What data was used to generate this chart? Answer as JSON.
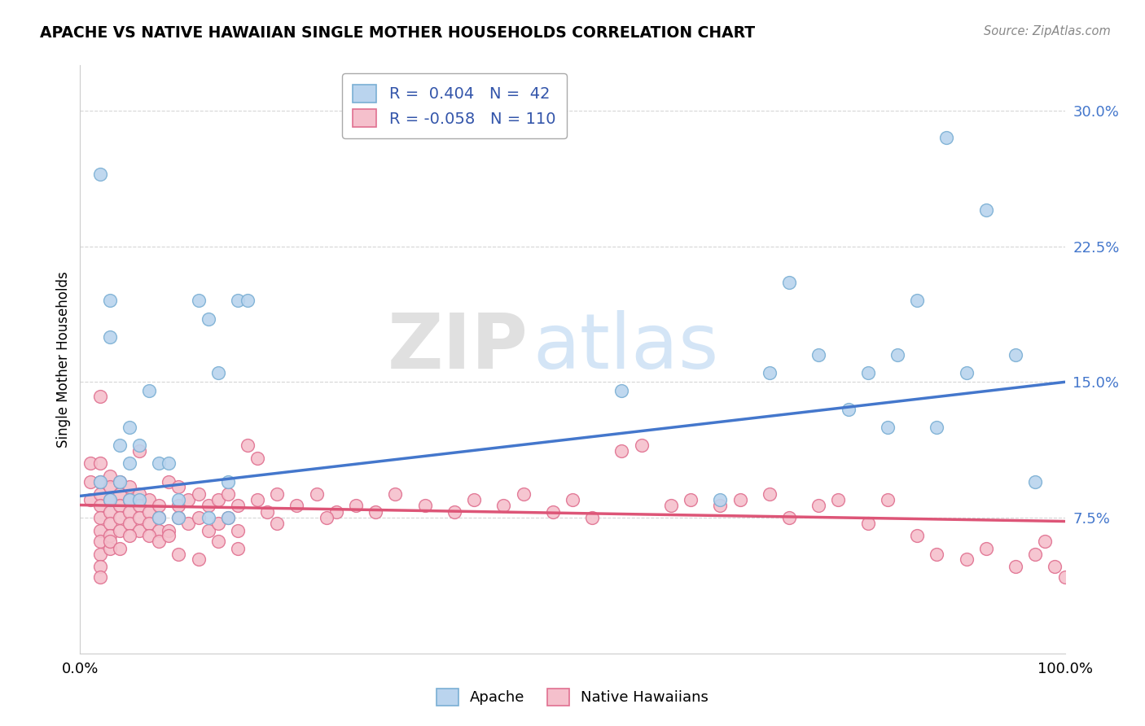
{
  "title": "APACHE VS NATIVE HAWAIIAN SINGLE MOTHER HOUSEHOLDS CORRELATION CHART",
  "source": "Source: ZipAtlas.com",
  "ylabel": "Single Mother Households",
  "xlim": [
    0,
    1.0
  ],
  "ylim": [
    0.0,
    0.325
  ],
  "yticks": [
    0.075,
    0.15,
    0.225,
    0.3
  ],
  "yticklabels": [
    "7.5%",
    "15.0%",
    "22.5%",
    "30.0%"
  ],
  "xtick_positions": [
    0.0,
    1.0
  ],
  "xticklabels": [
    "0.0%",
    "100.0%"
  ],
  "apache_R": 0.404,
  "apache_N": 42,
  "native_R": -0.058,
  "native_N": 110,
  "apache_face": "#bad4ee",
  "apache_edge": "#7aafd4",
  "native_face": "#f5c0cc",
  "native_edge": "#e07090",
  "line_apache": "#4477cc",
  "line_native": "#dd5577",
  "background": "#ffffff",
  "grid_color": "#cccccc",
  "apache_x": [
    0.02,
    0.03,
    0.03,
    0.04,
    0.05,
    0.05,
    0.06,
    0.07,
    0.08,
    0.09,
    0.1,
    0.12,
    0.13,
    0.14,
    0.15,
    0.16,
    0.17,
    0.55,
    0.65,
    0.7,
    0.72,
    0.75,
    0.78,
    0.8,
    0.83,
    0.85,
    0.88,
    0.9,
    0.92,
    0.95,
    0.97,
    0.02,
    0.03,
    0.04,
    0.05,
    0.06,
    0.08,
    0.1,
    0.13,
    0.15,
    0.87,
    0.82
  ],
  "apache_y": [
    0.265,
    0.195,
    0.175,
    0.115,
    0.125,
    0.105,
    0.115,
    0.145,
    0.105,
    0.105,
    0.085,
    0.195,
    0.185,
    0.155,
    0.095,
    0.195,
    0.195,
    0.145,
    0.085,
    0.155,
    0.205,
    0.165,
    0.135,
    0.155,
    0.165,
    0.195,
    0.285,
    0.155,
    0.245,
    0.165,
    0.095,
    0.095,
    0.085,
    0.095,
    0.085,
    0.085,
    0.075,
    0.075,
    0.075,
    0.075,
    0.125,
    0.125
  ],
  "native_x": [
    0.01,
    0.01,
    0.01,
    0.02,
    0.02,
    0.02,
    0.02,
    0.02,
    0.02,
    0.02,
    0.02,
    0.02,
    0.02,
    0.03,
    0.03,
    0.03,
    0.03,
    0.03,
    0.03,
    0.03,
    0.04,
    0.04,
    0.04,
    0.04,
    0.04,
    0.05,
    0.05,
    0.05,
    0.05,
    0.06,
    0.06,
    0.06,
    0.06,
    0.07,
    0.07,
    0.07,
    0.08,
    0.08,
    0.08,
    0.09,
    0.09,
    0.1,
    0.1,
    0.1,
    0.11,
    0.11,
    0.12,
    0.12,
    0.13,
    0.13,
    0.14,
    0.14,
    0.15,
    0.15,
    0.16,
    0.16,
    0.17,
    0.18,
    0.19,
    0.2,
    0.22,
    0.24,
    0.26,
    0.28,
    0.3,
    0.32,
    0.35,
    0.38,
    0.4,
    0.43,
    0.45,
    0.48,
    0.5,
    0.52,
    0.55,
    0.57,
    0.6,
    0.62,
    0.65,
    0.67,
    0.7,
    0.72,
    0.75,
    0.77,
    0.8,
    0.82,
    0.85,
    0.87,
    0.9,
    0.92,
    0.95,
    0.97,
    0.98,
    0.99,
    1.0,
    0.02,
    0.03,
    0.04,
    0.05,
    0.06,
    0.07,
    0.08,
    0.09,
    0.1,
    0.12,
    0.14,
    0.16,
    0.18,
    0.2,
    0.25
  ],
  "native_y": [
    0.105,
    0.095,
    0.085,
    0.105,
    0.095,
    0.088,
    0.082,
    0.075,
    0.068,
    0.062,
    0.055,
    0.048,
    0.042,
    0.098,
    0.092,
    0.085,
    0.078,
    0.072,
    0.065,
    0.058,
    0.095,
    0.088,
    0.082,
    0.075,
    0.068,
    0.092,
    0.085,
    0.078,
    0.072,
    0.088,
    0.082,
    0.075,
    0.068,
    0.085,
    0.078,
    0.072,
    0.082,
    0.075,
    0.068,
    0.095,
    0.068,
    0.092,
    0.082,
    0.075,
    0.085,
    0.072,
    0.088,
    0.075,
    0.082,
    0.068,
    0.085,
    0.072,
    0.088,
    0.075,
    0.082,
    0.068,
    0.115,
    0.085,
    0.078,
    0.088,
    0.082,
    0.088,
    0.078,
    0.082,
    0.078,
    0.088,
    0.082,
    0.078,
    0.085,
    0.082,
    0.088,
    0.078,
    0.085,
    0.075,
    0.112,
    0.115,
    0.082,
    0.085,
    0.082,
    0.085,
    0.088,
    0.075,
    0.082,
    0.085,
    0.072,
    0.085,
    0.065,
    0.055,
    0.052,
    0.058,
    0.048,
    0.055,
    0.062,
    0.048,
    0.042,
    0.142,
    0.062,
    0.058,
    0.065,
    0.112,
    0.065,
    0.062,
    0.065,
    0.055,
    0.052,
    0.062,
    0.058,
    0.108,
    0.072,
    0.075
  ]
}
